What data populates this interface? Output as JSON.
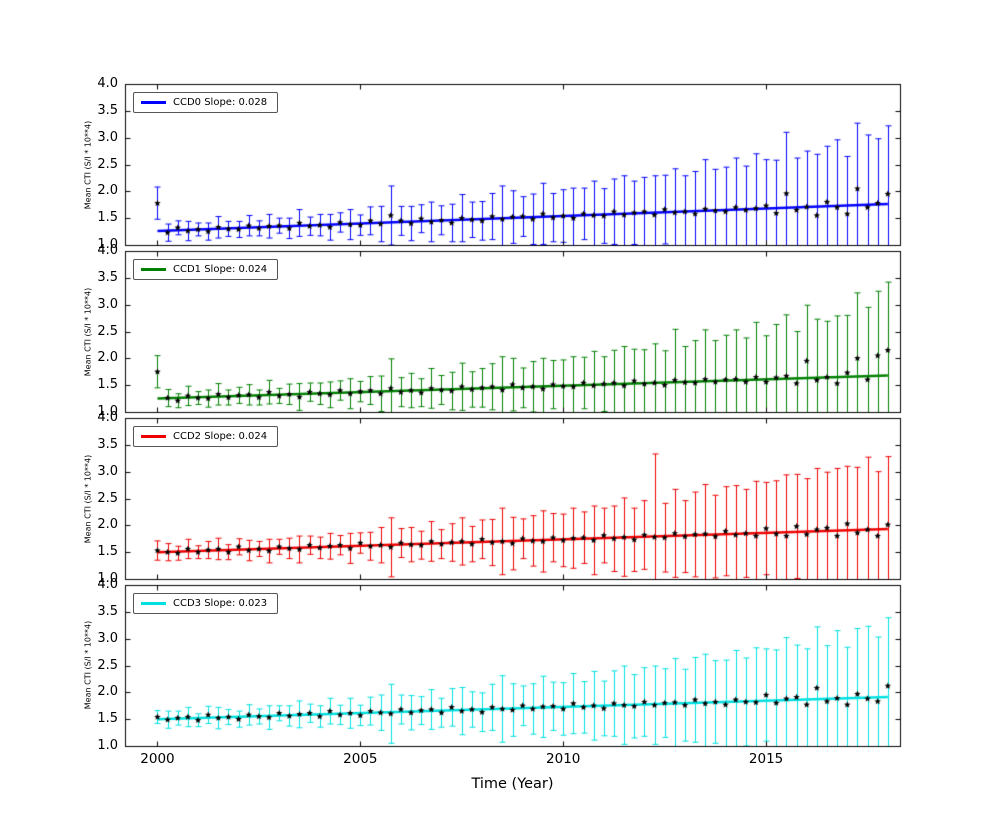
{
  "figure": {
    "background": "#ffffff"
  },
  "chart_data": {
    "type": "errorbar",
    "title": "",
    "xlabel": "Time (Year)",
    "ylabel": "Mean CTI (S/I * 10**4)",
    "xlim": [
      1999.2,
      2018.3
    ],
    "ylim": [
      1.0,
      4.0
    ],
    "xticks": [
      2000,
      2005,
      2010,
      2015
    ],
    "xtick_labels": [
      "2000",
      "2005",
      "2010",
      "2015"
    ],
    "yticks": [
      1.0,
      1.5,
      2.0,
      2.5,
      3.0,
      3.5,
      4.0
    ],
    "ytick_labels": [
      "1.0",
      "1.5",
      "2.0",
      "2.5",
      "3.0",
      "3.5",
      "4.0"
    ],
    "grid": false,
    "legend_position": "upper-left",
    "axis_color": "#000000",
    "marker": {
      "shape": "star",
      "color": "#000000"
    },
    "x": [
      2000.0,
      2000.25,
      2000.5,
      2000.75,
      2001.0,
      2001.25,
      2001.5,
      2001.75,
      2002.0,
      2002.25,
      2002.5,
      2002.75,
      2003.0,
      2003.25,
      2003.5,
      2003.75,
      2004.0,
      2004.25,
      2004.5,
      2004.75,
      2005.0,
      2005.25,
      2005.5,
      2005.75,
      2006.0,
      2006.25,
      2006.5,
      2006.75,
      2007.0,
      2007.25,
      2007.5,
      2007.75,
      2008.0,
      2008.25,
      2008.5,
      2008.75,
      2009.0,
      2009.25,
      2009.5,
      2009.75,
      2010.0,
      2010.25,
      2010.5,
      2010.75,
      2011.0,
      2011.25,
      2011.5,
      2011.75,
      2012.0,
      2012.25,
      2012.5,
      2012.75,
      2013.0,
      2013.25,
      2013.5,
      2013.75,
      2014.0,
      2014.25,
      2014.5,
      2014.75,
      2015.0,
      2015.25,
      2015.5,
      2015.75,
      2016.0,
      2016.25,
      2016.5,
      2016.75,
      2017.0,
      2017.25,
      2017.5,
      2017.75,
      2018.0
    ],
    "series": [
      {
        "name": "CCD0",
        "legend": "CCD0 Slope: 0.028",
        "color": "#0000ff",
        "fit": {
          "intercept": 1.26,
          "slope": 0.028
        },
        "y": [
          1.78,
          1.23,
          1.32,
          1.26,
          1.29,
          1.25,
          1.33,
          1.3,
          1.29,
          1.36,
          1.31,
          1.35,
          1.36,
          1.31,
          1.41,
          1.35,
          1.37,
          1.33,
          1.42,
          1.38,
          1.37,
          1.45,
          1.39,
          1.55,
          1.45,
          1.4,
          1.49,
          1.43,
          1.46,
          1.41,
          1.5,
          1.47,
          1.45,
          1.53,
          1.48,
          1.52,
          1.53,
          1.48,
          1.58,
          1.51,
          1.54,
          1.5,
          1.58,
          1.55,
          1.54,
          1.62,
          1.56,
          1.6,
          1.62,
          1.56,
          1.66,
          1.6,
          1.62,
          1.58,
          1.67,
          1.64,
          1.62,
          1.7,
          1.65,
          1.68,
          1.73,
          1.59,
          1.96,
          1.65,
          1.71,
          1.55,
          1.8,
          1.7,
          1.58,
          2.05,
          1.7,
          1.78,
          1.95
        ],
        "err": [
          0.3,
          0.16,
          0.13,
          0.18,
          0.12,
          0.16,
          0.2,
          0.14,
          0.15,
          0.19,
          0.14,
          0.22,
          0.14,
          0.19,
          0.25,
          0.17,
          0.2,
          0.24,
          0.18,
          0.28,
          0.19,
          0.26,
          0.33,
          0.55,
          0.27,
          0.32,
          0.26,
          0.37,
          0.27,
          0.35,
          0.44,
          0.33,
          0.36,
          0.43,
          0.62,
          0.49,
          0.37,
          0.47,
          0.57,
          0.45,
          0.49,
          0.56,
          0.48,
          0.64,
          0.51,
          0.61,
          0.73,
          0.59,
          0.64,
          0.73,
          0.64,
          0.82,
          0.67,
          0.79,
          0.92,
          0.77,
          0.83,
          0.92,
          0.82,
          1.02,
          0.86,
          0.99,
          1.14,
          0.97,
          1.04,
          1.14,
          1.04,
          1.26,
          1.07,
          1.22,
          1.35,
          1.2,
          1.27
        ]
      },
      {
        "name": "CCD1",
        "legend": "CCD1 Slope: 0.024",
        "color": "#008000",
        "fit": {
          "intercept": 1.25,
          "slope": 0.024
        },
        "y": [
          1.75,
          1.26,
          1.21,
          1.3,
          1.26,
          1.25,
          1.33,
          1.27,
          1.31,
          1.32,
          1.27,
          1.37,
          1.3,
          1.33,
          1.28,
          1.37,
          1.34,
          1.32,
          1.4,
          1.34,
          1.38,
          1.4,
          1.34,
          1.44,
          1.37,
          1.4,
          1.36,
          1.44,
          1.41,
          1.39,
          1.47,
          1.42,
          1.45,
          1.47,
          1.41,
          1.51,
          1.45,
          1.47,
          1.43,
          1.51,
          1.48,
          1.47,
          1.54,
          1.49,
          1.52,
          1.54,
          1.49,
          1.58,
          1.52,
          1.54,
          1.5,
          1.59,
          1.55,
          1.54,
          1.61,
          1.56,
          1.6,
          1.61,
          1.56,
          1.65,
          1.56,
          1.64,
          1.67,
          1.53,
          1.95,
          1.59,
          1.65,
          1.53,
          1.73,
          2.0,
          1.6,
          2.05,
          2.15
        ],
        "err": [
          0.3,
          0.16,
          0.13,
          0.18,
          0.12,
          0.16,
          0.2,
          0.14,
          0.15,
          0.19,
          0.14,
          0.22,
          0.14,
          0.19,
          0.25,
          0.17,
          0.2,
          0.24,
          0.18,
          0.28,
          0.19,
          0.26,
          0.33,
          0.55,
          0.27,
          0.32,
          0.26,
          0.37,
          0.27,
          0.35,
          0.44,
          0.33,
          0.36,
          0.43,
          0.62,
          0.49,
          0.37,
          0.47,
          0.57,
          0.45,
          0.49,
          0.56,
          0.48,
          0.64,
          0.51,
          0.61,
          0.73,
          0.59,
          0.64,
          0.73,
          0.64,
          0.95,
          0.67,
          0.79,
          0.92,
          0.77,
          0.83,
          0.92,
          0.82,
          1.02,
          0.86,
          0.99,
          1.14,
          0.97,
          1.04,
          1.14,
          1.04,
          1.26,
          1.07,
          1.22,
          1.35,
          1.2,
          1.27
        ]
      },
      {
        "name": "CCD2",
        "legend": "CCD2 Slope: 0.024",
        "color": "#ee0000",
        "fit": {
          "intercept": 1.5,
          "slope": 0.024
        },
        "y": [
          1.53,
          1.5,
          1.48,
          1.56,
          1.5,
          1.54,
          1.56,
          1.5,
          1.6,
          1.53,
          1.56,
          1.52,
          1.6,
          1.57,
          1.55,
          1.63,
          1.58,
          1.61,
          1.63,
          1.57,
          1.67,
          1.61,
          1.63,
          1.59,
          1.67,
          1.64,
          1.63,
          1.7,
          1.65,
          1.68,
          1.7,
          1.65,
          1.74,
          1.68,
          1.7,
          1.66,
          1.75,
          1.71,
          1.7,
          1.77,
          1.72,
          1.76,
          1.77,
          1.72,
          1.81,
          1.75,
          1.78,
          1.73,
          1.82,
          1.78,
          1.77,
          1.85,
          1.79,
          1.83,
          1.84,
          1.79,
          1.89,
          1.82,
          1.85,
          1.8,
          1.94,
          1.84,
          1.8,
          1.98,
          1.83,
          1.92,
          1.95,
          1.8,
          2.03,
          1.86,
          1.92,
          1.8,
          2.01
        ],
        "err": [
          0.18,
          0.16,
          0.13,
          0.18,
          0.12,
          0.16,
          0.2,
          0.14,
          0.15,
          0.19,
          0.14,
          0.22,
          0.14,
          0.19,
          0.25,
          0.17,
          0.2,
          0.24,
          0.18,
          0.28,
          0.19,
          0.26,
          0.33,
          0.55,
          0.27,
          0.32,
          0.26,
          0.37,
          0.27,
          0.35,
          0.44,
          0.33,
          0.36,
          0.43,
          0.62,
          0.49,
          0.37,
          0.47,
          0.57,
          0.45,
          0.49,
          0.56,
          0.48,
          0.64,
          0.51,
          0.61,
          0.73,
          0.59,
          0.64,
          1.55,
          0.64,
          0.82,
          0.67,
          0.79,
          0.92,
          0.77,
          0.83,
          0.92,
          0.82,
          1.02,
          0.86,
          0.99,
          1.14,
          0.97,
          1.04,
          1.14,
          1.04,
          1.26,
          1.07,
          1.22,
          1.35,
          1.2,
          1.27
        ]
      },
      {
        "name": "CCD3",
        "legend": "CCD3 Slope: 0.023",
        "color": "#00e0e0",
        "fit": {
          "intercept": 1.5,
          "slope": 0.023
        },
        "y": [
          1.54,
          1.49,
          1.52,
          1.54,
          1.48,
          1.58,
          1.52,
          1.54,
          1.5,
          1.58,
          1.55,
          1.53,
          1.61,
          1.56,
          1.59,
          1.61,
          1.55,
          1.65,
          1.58,
          1.61,
          1.57,
          1.65,
          1.62,
          1.6,
          1.68,
          1.62,
          1.66,
          1.68,
          1.62,
          1.72,
          1.65,
          1.68,
          1.63,
          1.72,
          1.69,
          1.67,
          1.75,
          1.69,
          1.73,
          1.74,
          1.69,
          1.79,
          1.72,
          1.75,
          1.7,
          1.79,
          1.76,
          1.74,
          1.82,
          1.76,
          1.8,
          1.81,
          1.76,
          1.86,
          1.79,
          1.82,
          1.77,
          1.86,
          1.82,
          1.81,
          1.95,
          1.8,
          1.88,
          1.91,
          1.77,
          2.08,
          1.83,
          1.89,
          1.77,
          1.97,
          1.88,
          1.83,
          2.12
        ],
        "err": [
          0.12,
          0.16,
          0.13,
          0.18,
          0.12,
          0.16,
          0.2,
          0.14,
          0.15,
          0.19,
          0.14,
          0.22,
          0.14,
          0.19,
          0.25,
          0.17,
          0.2,
          0.24,
          0.18,
          0.28,
          0.19,
          0.26,
          0.33,
          0.55,
          0.27,
          0.32,
          0.26,
          0.37,
          0.27,
          0.35,
          0.44,
          0.33,
          0.36,
          0.43,
          0.62,
          0.49,
          0.37,
          0.47,
          0.57,
          0.45,
          0.49,
          0.56,
          0.48,
          0.64,
          0.51,
          0.61,
          0.73,
          0.59,
          0.64,
          0.73,
          0.64,
          0.82,
          0.67,
          0.79,
          0.92,
          0.77,
          0.83,
          0.92,
          0.82,
          1.02,
          0.86,
          0.99,
          1.14,
          0.97,
          1.04,
          1.14,
          1.04,
          1.26,
          1.07,
          1.22,
          1.35,
          1.2,
          1.27
        ]
      }
    ]
  }
}
